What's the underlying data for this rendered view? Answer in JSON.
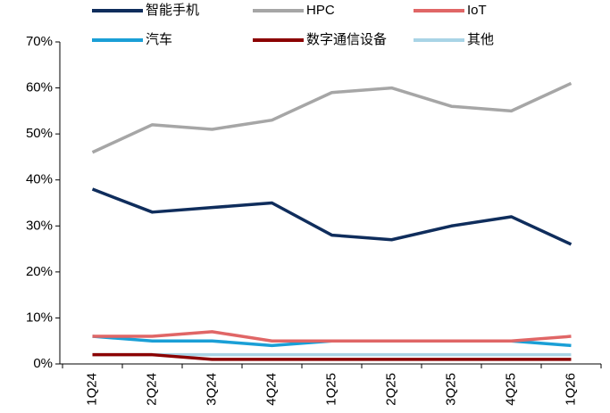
{
  "chart_data": {
    "type": "line",
    "categories": [
      "1Q24",
      "2Q24",
      "3Q24",
      "4Q24",
      "1Q25",
      "2Q25",
      "3Q25",
      "4Q25",
      "1Q26"
    ],
    "series": [
      {
        "name": "智能手机",
        "color": "#0f2d5c",
        "values": [
          38,
          33,
          34,
          35,
          28,
          27,
          30,
          32,
          26
        ]
      },
      {
        "name": "HPC",
        "color": "#a6a6a6",
        "values": [
          46,
          52,
          51,
          53,
          59,
          60,
          56,
          55,
          61
        ]
      },
      {
        "name": "IoT",
        "color": "#e06666",
        "values": [
          6,
          6,
          7,
          5,
          5,
          5,
          5,
          5,
          6
        ]
      },
      {
        "name": "汽车",
        "color": "#1a9fd6",
        "values": [
          6,
          5,
          5,
          4,
          5,
          5,
          5,
          5,
          4
        ]
      },
      {
        "name": "数字通信设备",
        "color": "#8b0000",
        "values": [
          2,
          2,
          1,
          1,
          1,
          1,
          1,
          1,
          1
        ]
      },
      {
        "name": "其他",
        "color": "#a9d4e6",
        "values": [
          2,
          2,
          2,
          2,
          2,
          2,
          2,
          2,
          2
        ]
      }
    ],
    "ylim": [
      0,
      70
    ],
    "yticks": [
      {
        "value": 0,
        "label": "0%"
      },
      {
        "value": 10,
        "label": "10%"
      },
      {
        "value": 20,
        "label": "20%"
      },
      {
        "value": 30,
        "label": "30%"
      },
      {
        "value": 40,
        "label": "40%"
      },
      {
        "value": 50,
        "label": "50%"
      },
      {
        "value": 60,
        "label": "60%"
      },
      {
        "value": 70,
        "label": "70%"
      }
    ]
  }
}
